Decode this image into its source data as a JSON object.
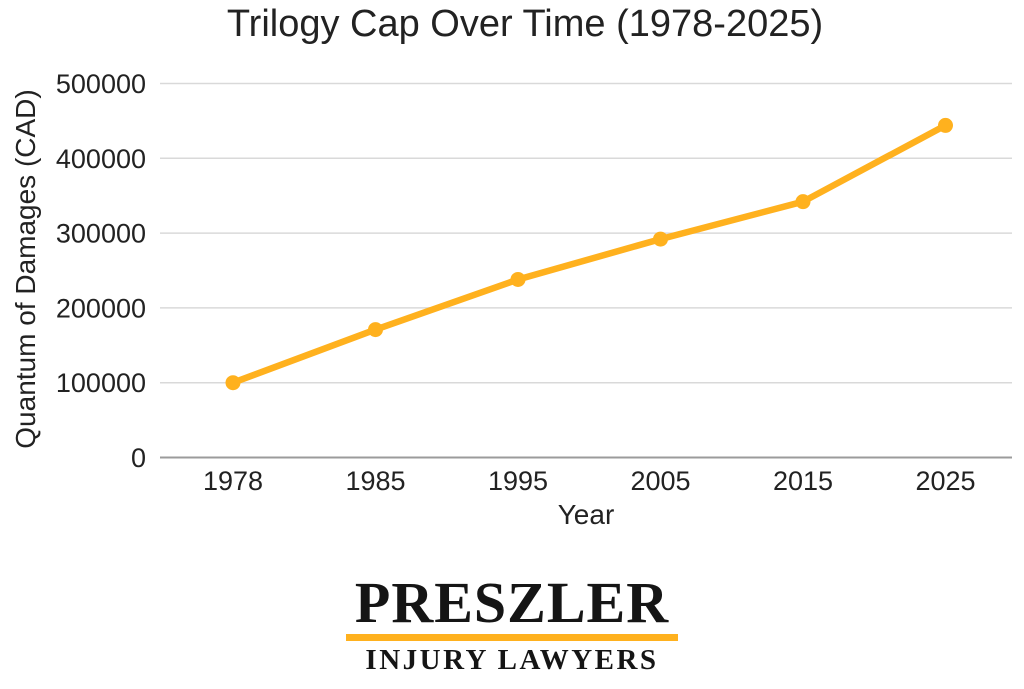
{
  "chart_data": {
    "type": "line",
    "title": "Trilogy Cap Over Time (1978-2025)",
    "xlabel": "Year",
    "ylabel": "Quantum of Damages (CAD)",
    "categories": [
      "1978",
      "1985",
      "1995",
      "2005",
      "2015",
      "2025"
    ],
    "values": [
      100000,
      171000,
      238000,
      292000,
      342000,
      444000
    ],
    "yticks": [
      0,
      100000,
      200000,
      300000,
      400000,
      500000
    ],
    "ylim": [
      0,
      500000
    ],
    "grid": "horizontal",
    "legend": "none",
    "line_color": "#FFB11E",
    "marker": "circle"
  },
  "colors": {
    "accent": "#FFB11E",
    "grid": "#D9D9D9",
    "axis": "#9B9B9B",
    "text": "#222222",
    "background": "#FFFFFF"
  },
  "logo": {
    "name": "PRESZLER",
    "tagline": "INJURY LAWYERS"
  }
}
